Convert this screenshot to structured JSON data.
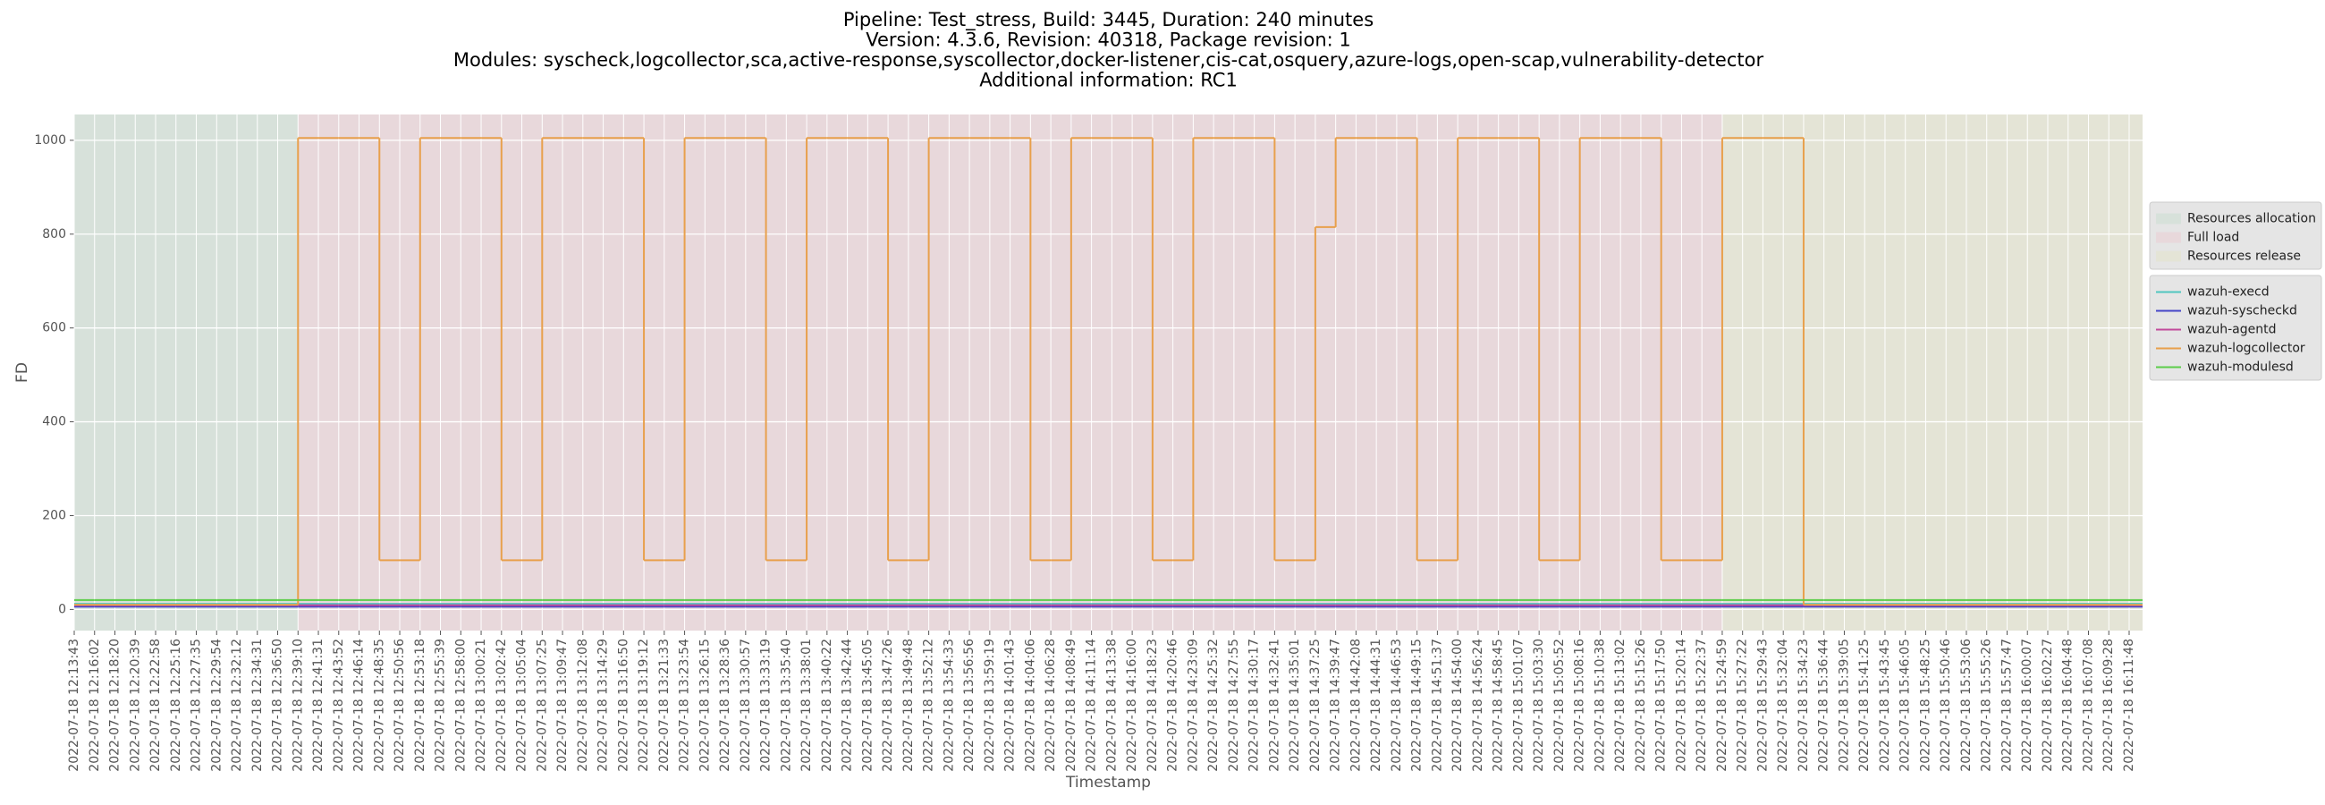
{
  "chart_data": {
    "type": "line",
    "title": [
      "Pipeline: Test_stress, Build: 3445, Duration: 240 minutes",
      "Version: 4.3.6, Revision: 40318, Package revision: 1",
      "Modules: syscheck,logcollector,sca,active-response,syscollector,docker-listener,cis-cat,osquery,azure-logs,open-scap,vulnerability-detector",
      "Additional information: RC1"
    ],
    "xlabel": "Timestamp",
    "ylabel": "FD",
    "ylim": [
      -45,
      1055
    ],
    "yticks": [
      0,
      200,
      400,
      600,
      800,
      1000
    ],
    "grid": true,
    "legend": "right",
    "categories": [
      "2022-07-18 12:13:43",
      "2022-07-18 12:16:02",
      "2022-07-18 12:18:20",
      "2022-07-18 12:20:39",
      "2022-07-18 12:22:58",
      "2022-07-18 12:25:16",
      "2022-07-18 12:27:35",
      "2022-07-18 12:29:54",
      "2022-07-18 12:32:12",
      "2022-07-18 12:34:31",
      "2022-07-18 12:36:50",
      "2022-07-18 12:39:10",
      "2022-07-18 12:41:31",
      "2022-07-18 12:43:52",
      "2022-07-18 12:46:14",
      "2022-07-18 12:48:35",
      "2022-07-18 12:50:56",
      "2022-07-18 12:53:18",
      "2022-07-18 12:55:39",
      "2022-07-18 12:58:00",
      "2022-07-18 13:00:21",
      "2022-07-18 13:02:42",
      "2022-07-18 13:05:04",
      "2022-07-18 13:07:25",
      "2022-07-18 13:09:47",
      "2022-07-18 13:12:08",
      "2022-07-18 13:14:29",
      "2022-07-18 13:16:50",
      "2022-07-18 13:19:12",
      "2022-07-18 13:21:33",
      "2022-07-18 13:23:54",
      "2022-07-18 13:26:15",
      "2022-07-18 13:28:36",
      "2022-07-18 13:30:57",
      "2022-07-18 13:33:19",
      "2022-07-18 13:35:40",
      "2022-07-18 13:38:01",
      "2022-07-18 13:40:22",
      "2022-07-18 13:42:44",
      "2022-07-18 13:45:05",
      "2022-07-18 13:47:26",
      "2022-07-18 13:49:48",
      "2022-07-18 13:52:12",
      "2022-07-18 13:54:33",
      "2022-07-18 13:56:56",
      "2022-07-18 13:59:19",
      "2022-07-18 14:01:43",
      "2022-07-18 14:04:06",
      "2022-07-18 14:06:28",
      "2022-07-18 14:08:49",
      "2022-07-18 14:11:14",
      "2022-07-18 14:13:38",
      "2022-07-18 14:16:00",
      "2022-07-18 14:18:23",
      "2022-07-18 14:20:46",
      "2022-07-18 14:23:09",
      "2022-07-18 14:25:32",
      "2022-07-18 14:27:55",
      "2022-07-18 14:30:17",
      "2022-07-18 14:32:41",
      "2022-07-18 14:35:01",
      "2022-07-18 14:37:25",
      "2022-07-18 14:39:47",
      "2022-07-18 14:42:08",
      "2022-07-18 14:44:31",
      "2022-07-18 14:46:53",
      "2022-07-18 14:49:15",
      "2022-07-18 14:51:37",
      "2022-07-18 14:54:00",
      "2022-07-18 14:56:24",
      "2022-07-18 14:58:45",
      "2022-07-18 15:01:07",
      "2022-07-18 15:03:30",
      "2022-07-18 15:05:52",
      "2022-07-18 15:08:16",
      "2022-07-18 15:10:38",
      "2022-07-18 15:13:02",
      "2022-07-18 15:15:26",
      "2022-07-18 15:17:50",
      "2022-07-18 15:20:14",
      "2022-07-18 15:22:37",
      "2022-07-18 15:24:59",
      "2022-07-18 15:27:22",
      "2022-07-18 15:29:43",
      "2022-07-18 15:32:04",
      "2022-07-18 15:34:23",
      "2022-07-18 15:36:44",
      "2022-07-18 15:39:05",
      "2022-07-18 15:41:25",
      "2022-07-18 15:43:45",
      "2022-07-18 15:46:05",
      "2022-07-18 15:48:25",
      "2022-07-18 15:50:46",
      "2022-07-18 15:53:06",
      "2022-07-18 15:55:26",
      "2022-07-18 15:57:47",
      "2022-07-18 16:00:07",
      "2022-07-18 16:02:27",
      "2022-07-18 16:04:48",
      "2022-07-18 16:07:08",
      "2022-07-18 16:09:28",
      "2022-07-18 16:11:48"
    ],
    "spans": [
      {
        "name": "Resources allocation",
        "color": "#d7e1da",
        "start": "2022-07-18 12:13:43",
        "end": "2022-07-18 12:39:10"
      },
      {
        "name": "Full load",
        "color": "#e8d8db",
        "start": "2022-07-18 12:39:10",
        "end": "2022-07-18 15:24:59"
      },
      {
        "name": "Resources release",
        "color": "#e4e4d6",
        "start": "2022-07-18 15:24:59",
        "end": "2022-07-18 16:11:48"
      }
    ],
    "series": [
      {
        "name": "wazuh-execd",
        "color": "#4fc6c0",
        "values": [
          12,
          12,
          12,
          12,
          12,
          12,
          12,
          12,
          12,
          12,
          12,
          12,
          12,
          12,
          12,
          12,
          12,
          12,
          12,
          12,
          12,
          12,
          12,
          12,
          12,
          12,
          12,
          12,
          12,
          12,
          12,
          12,
          12,
          12,
          12,
          12,
          12,
          12,
          12,
          12,
          12,
          12,
          12,
          12,
          12,
          12,
          12,
          12,
          12,
          12,
          12,
          12,
          12,
          12,
          12,
          12,
          12,
          12,
          12,
          12,
          12,
          12,
          12,
          12,
          12,
          12,
          12,
          12,
          12,
          12,
          12,
          12,
          12,
          12,
          12,
          12,
          12,
          12,
          12,
          12,
          12,
          12,
          12,
          12,
          12,
          12,
          12,
          12,
          12,
          12,
          12,
          12,
          12,
          12,
          12,
          12,
          12,
          12,
          12,
          12,
          12,
          12
        ]
      },
      {
        "name": "wazuh-syscheckd",
        "color": "#4545c8",
        "values": [
          6,
          6,
          6,
          6,
          6,
          6,
          6,
          6,
          6,
          6,
          6,
          6,
          6,
          6,
          6,
          6,
          6,
          6,
          6,
          6,
          6,
          6,
          6,
          6,
          6,
          6,
          6,
          6,
          6,
          6,
          6,
          6,
          6,
          6,
          6,
          6,
          6,
          6,
          6,
          6,
          6,
          6,
          6,
          6,
          6,
          6,
          6,
          6,
          6,
          6,
          6,
          6,
          6,
          6,
          6,
          6,
          6,
          6,
          6,
          6,
          6,
          6,
          6,
          6,
          6,
          6,
          6,
          6,
          6,
          6,
          6,
          6,
          6,
          6,
          6,
          6,
          6,
          6,
          6,
          6,
          6,
          6,
          6,
          6,
          6,
          6,
          6,
          6,
          6,
          6,
          6,
          6,
          6,
          6,
          6,
          6,
          6,
          6,
          6,
          6,
          6,
          6
        ]
      },
      {
        "name": "wazuh-agentd",
        "color": "#c24a9c",
        "values": [
          9,
          9,
          9,
          9,
          9,
          9,
          9,
          9,
          9,
          9,
          9,
          9,
          9,
          9,
          9,
          9,
          9,
          9,
          9,
          9,
          9,
          9,
          9,
          9,
          9,
          9,
          9,
          9,
          9,
          9,
          9,
          9,
          9,
          9,
          9,
          9,
          9,
          9,
          9,
          9,
          9,
          9,
          9,
          9,
          9,
          9,
          9,
          9,
          9,
          9,
          9,
          9,
          9,
          9,
          9,
          9,
          9,
          9,
          9,
          9,
          9,
          9,
          9,
          9,
          9,
          9,
          9,
          9,
          9,
          9,
          9,
          9,
          9,
          9,
          9,
          9,
          9,
          9,
          9,
          9,
          9,
          9,
          9,
          9,
          9,
          9,
          9,
          9,
          9,
          9,
          9,
          9,
          9,
          9,
          9,
          9,
          9,
          9,
          9,
          9,
          9,
          9
        ]
      },
      {
        "name": "wazuh-logcollector",
        "color": "#e8a04c",
        "values": [
          10,
          10,
          10,
          10,
          10,
          10,
          10,
          10,
          10,
          10,
          10,
          1005,
          1005,
          1005,
          1005,
          105,
          105,
          1005,
          1005,
          1005,
          1005,
          105,
          105,
          1005,
          1005,
          1005,
          1005,
          1005,
          105,
          105,
          1005,
          1005,
          1005,
          1005,
          105,
          105,
          1005,
          1005,
          1005,
          1005,
          105,
          105,
          1005,
          1005,
          1005,
          1005,
          1005,
          105,
          105,
          1005,
          1005,
          1005,
          1005,
          105,
          105,
          1005,
          1005,
          1005,
          1005,
          105,
          105,
          815,
          1005,
          1005,
          1005,
          1005,
          105,
          105,
          1005,
          1005,
          1005,
          1005,
          105,
          105,
          1005,
          1005,
          1005,
          1005,
          105,
          105,
          105,
          1005,
          1005,
          1005,
          1005,
          10,
          10,
          10,
          10,
          10,
          10,
          10,
          10,
          10,
          10,
          10,
          10,
          10,
          10,
          10,
          10,
          10
        ]
      },
      {
        "name": "wazuh-modulesd",
        "color": "#5ccd4a",
        "values": [
          20,
          20,
          20,
          20,
          20,
          20,
          20,
          20,
          20,
          20,
          20,
          20,
          20,
          20,
          20,
          20,
          20,
          20,
          20,
          20,
          20,
          20,
          20,
          20,
          20,
          20,
          20,
          20,
          20,
          20,
          20,
          20,
          20,
          20,
          20,
          20,
          20,
          20,
          20,
          20,
          20,
          20,
          20,
          20,
          20,
          20,
          20,
          20,
          20,
          20,
          20,
          20,
          20,
          20,
          20,
          20,
          20,
          20,
          20,
          20,
          20,
          20,
          20,
          20,
          20,
          20,
          20,
          20,
          20,
          20,
          20,
          20,
          20,
          20,
          20,
          20,
          20,
          20,
          20,
          20,
          20,
          20,
          20,
          20,
          20,
          20,
          20,
          20,
          20,
          20,
          20,
          20,
          20,
          20,
          20,
          20,
          20,
          20,
          20,
          20,
          20,
          20
        ]
      }
    ]
  }
}
